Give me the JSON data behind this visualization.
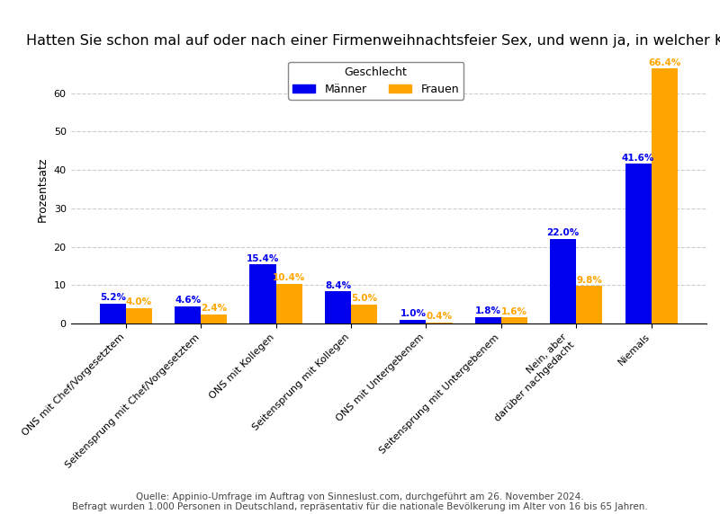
{
  "title": "Hatten Sie schon mal auf oder nach einer Firmenweihnachtsfeier Sex, und wenn ja, in welcher Konstellation?",
  "ylabel": "Prozentsatz",
  "categories": [
    "ONS mit Chef/Vorgesetztem",
    "Seitensprung mit Chef/Vorgesetztem",
    "ONS mit Kollegen",
    "Seitensprung mit Kollegen",
    "ONS mit Untergebenem",
    "Seitensprung mit Untergebenem",
    "Nein, aber\ndarüber nachgedacht",
    "Niemals"
  ],
  "maenner": [
    5.2,
    4.6,
    15.4,
    8.4,
    1.0,
    1.8,
    22.0,
    41.6
  ],
  "frauen": [
    4.0,
    2.4,
    10.4,
    5.0,
    0.4,
    1.6,
    9.8,
    66.4
  ],
  "maenner_color": "#0000EE",
  "frauen_color": "#FFA500",
  "background_color": "#FFFFFF",
  "grid_color": "#CCCCCC",
  "legend_title": "Geschlecht",
  "legend_maenner": "Männer",
  "legend_frauen": "Frauen",
  "source_line1": "Quelle: Appinio-Umfrage im Auftrag von Sinneslust.com, durchgeführt am 26. November 2024.",
  "source_line2": "Befragt wurden 1.000 Personen in Deutschland, repräsentativ für die nationale Bevölkerung im Alter von 16 bis 65 Jahren.",
  "ylim": [
    0,
    70
  ],
  "yticks": [
    0,
    10,
    20,
    30,
    40,
    50,
    60
  ],
  "bar_width": 0.35,
  "title_fontsize": 11.5,
  "label_fontsize": 7.5,
  "tick_fontsize": 8,
  "ylabel_fontsize": 9,
  "legend_fontsize": 9,
  "source_fontsize": 7.5
}
